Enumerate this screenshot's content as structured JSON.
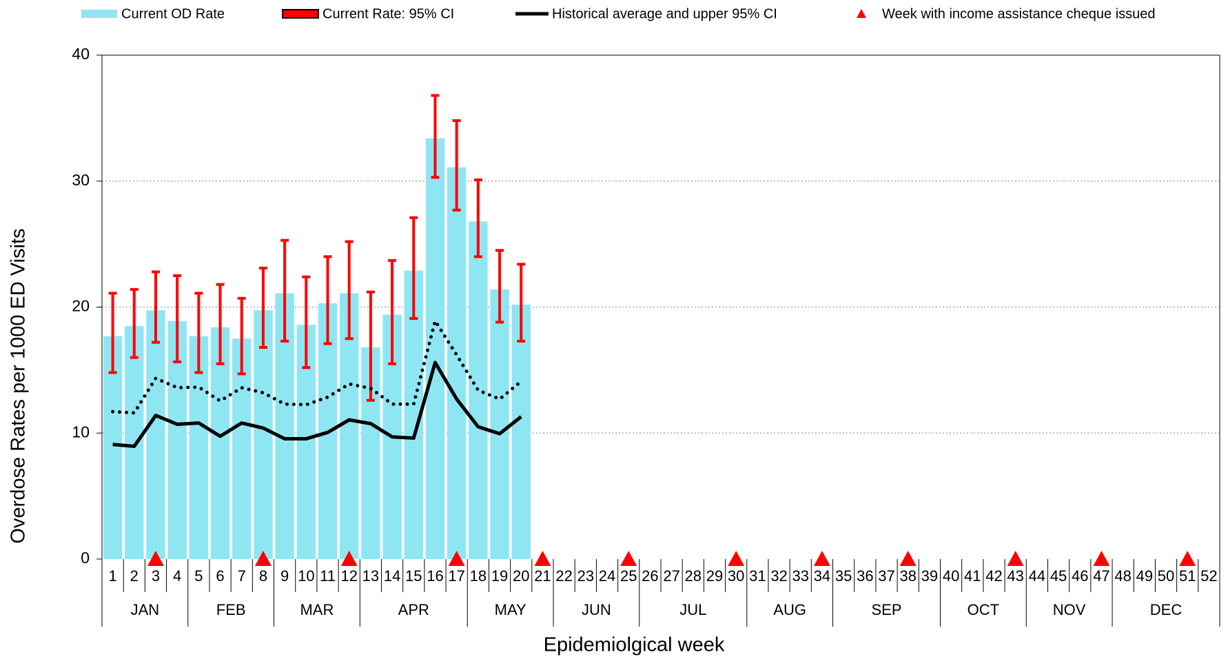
{
  "chart_data": {
    "type": "bar",
    "xlabel": "Epidemiolgical week",
    "ylabel": "Overdose Rates per 1000 ED Visits",
    "categories": [
      1,
      2,
      3,
      4,
      5,
      6,
      7,
      8,
      9,
      10,
      11,
      12,
      13,
      14,
      15,
      16,
      17,
      18,
      19,
      20,
      21,
      22,
      23,
      24,
      25,
      26,
      27,
      28,
      29,
      30,
      31,
      32,
      33,
      34,
      35,
      36,
      37,
      38,
      39,
      40,
      41,
      42,
      43,
      44,
      45,
      46,
      47,
      48,
      49,
      50,
      51,
      52
    ],
    "month_groups": [
      {
        "label": "JAN",
        "first_week": 1,
        "last_week": 4
      },
      {
        "label": "FEB",
        "first_week": 5,
        "last_week": 8
      },
      {
        "label": "MAR",
        "first_week": 9,
        "last_week": 12
      },
      {
        "label": "APR",
        "first_week": 13,
        "last_week": 17
      },
      {
        "label": "MAY",
        "first_week": 18,
        "last_week": 21
      },
      {
        "label": "JUN",
        "first_week": 22,
        "last_week": 25
      },
      {
        "label": "JUL",
        "first_week": 26,
        "last_week": 30
      },
      {
        "label": "AUG",
        "first_week": 31,
        "last_week": 34
      },
      {
        "label": "SEP",
        "first_week": 35,
        "last_week": 39
      },
      {
        "label": "OCT",
        "first_week": 40,
        "last_week": 43
      },
      {
        "label": "NOV",
        "first_week": 44,
        "last_week": 47
      },
      {
        "label": "DEC",
        "first_week": 48,
        "last_week": 52
      }
    ],
    "series": [
      {
        "name": "Current OD Rate",
        "type": "bar",
        "color": "#8fe6f3",
        "values": [
          17.7,
          18.5,
          19.75,
          18.9,
          17.7,
          18.4,
          17.5,
          19.75,
          21.1,
          18.6,
          20.3,
          21.1,
          16.8,
          19.4,
          22.9,
          33.4,
          31.1,
          26.8,
          21.4,
          20.2,
          null,
          null,
          null,
          null,
          null,
          null,
          null,
          null,
          null,
          null,
          null,
          null,
          null,
          null,
          null,
          null,
          null,
          null,
          null,
          null,
          null,
          null,
          null,
          null,
          null,
          null,
          null,
          null,
          null,
          null,
          null,
          null
        ]
      },
      {
        "name": "Current Rate: 95% CI",
        "type": "errorbar",
        "color": "#ff0000",
        "lower": [
          14.8,
          16.0,
          17.2,
          15.65,
          14.8,
          15.5,
          14.7,
          16.8,
          17.3,
          15.2,
          17.1,
          17.5,
          12.6,
          15.5,
          19.1,
          30.3,
          27.7,
          24.0,
          18.8,
          17.3,
          null,
          null,
          null,
          null,
          null,
          null,
          null,
          null,
          null,
          null,
          null,
          null,
          null,
          null,
          null,
          null,
          null,
          null,
          null,
          null,
          null,
          null,
          null,
          null,
          null,
          null,
          null,
          null,
          null,
          null,
          null,
          null
        ],
        "upper": [
          21.1,
          21.4,
          22.8,
          22.5,
          21.1,
          21.8,
          20.7,
          23.1,
          25.3,
          22.4,
          24.0,
          25.2,
          21.2,
          23.7,
          27.1,
          36.8,
          34.8,
          30.1,
          24.5,
          23.4,
          null,
          null,
          null,
          null,
          null,
          null,
          null,
          null,
          null,
          null,
          null,
          null,
          null,
          null,
          null,
          null,
          null,
          null,
          null,
          null,
          null,
          null,
          null,
          null,
          null,
          null,
          null,
          null,
          null,
          null,
          null,
          null
        ]
      },
      {
        "name": "Historical average and upper 95% CI",
        "type": "line",
        "color": "#000000",
        "values": [
          9.1,
          8.95,
          11.4,
          10.7,
          10.8,
          9.75,
          10.8,
          10.4,
          9.55,
          9.55,
          10.05,
          11.05,
          10.75,
          9.7,
          9.6,
          15.6,
          12.7,
          10.5,
          9.95,
          11.3,
          null,
          null,
          null,
          null,
          null,
          null,
          null,
          null,
          null,
          null,
          null,
          null,
          null,
          null,
          null,
          null,
          null,
          null,
          null,
          null,
          null,
          null,
          null,
          null,
          null,
          null,
          null,
          null,
          null,
          null,
          null,
          null
        ],
        "upper": [
          11.7,
          11.6,
          14.35,
          13.6,
          13.65,
          12.55,
          13.6,
          13.2,
          12.3,
          12.25,
          12.85,
          13.9,
          13.55,
          12.3,
          12.3,
          18.9,
          16.2,
          13.4,
          12.7,
          14.1,
          null,
          null,
          null,
          null,
          null,
          null,
          null,
          null,
          null,
          null,
          null,
          null,
          null,
          null,
          null,
          null,
          null,
          null,
          null,
          null,
          null,
          null,
          null,
          null,
          null,
          null,
          null,
          null,
          null,
          null,
          null,
          null
        ]
      },
      {
        "name": "Week with income assistance cheque issued",
        "type": "marker",
        "color": "#ff0000",
        "values": [
          null,
          null,
          0,
          null,
          null,
          null,
          null,
          0,
          null,
          null,
          null,
          0,
          null,
          null,
          null,
          null,
          0,
          null,
          null,
          null,
          0,
          null,
          null,
          null,
          0,
          null,
          null,
          null,
          null,
          0,
          null,
          null,
          null,
          0,
          null,
          null,
          null,
          0,
          null,
          null,
          null,
          null,
          0,
          null,
          null,
          null,
          0,
          null,
          null,
          null,
          0,
          null
        ]
      }
    ],
    "ylim": [
      0,
      40
    ],
    "yticks": [
      0,
      10,
      20,
      30,
      40
    ],
    "grid": true
  }
}
